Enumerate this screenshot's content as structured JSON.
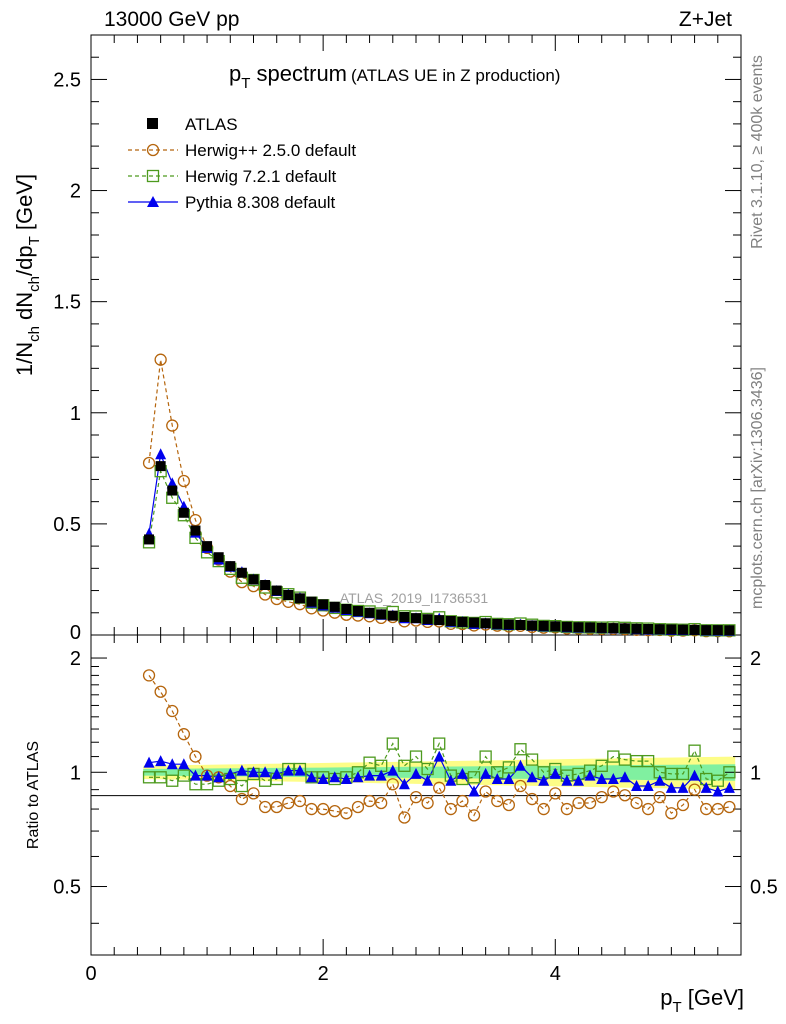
{
  "header": {
    "energy": "13000 GeV pp",
    "process": "Z+Jet"
  },
  "side_labels": {
    "rivet": "Rivet 3.1.10, ≥ 400k events",
    "mcplots": "mcplots.cern.ch [arXiv:1306.3436]"
  },
  "chart_data": {
    "type": "line",
    "title_main": "p",
    "title_sub": "T",
    "title_word": " spectrum",
    "title_extra": "(ATLAS UE in Z production)",
    "analysis_id": "ATLAS_2019_I1736531",
    "xlabel": "p",
    "xlabel_sub": "T",
    "xlabel_unit": " [GeV]",
    "ylabel_main": "1/N",
    "ylabel_ch1": "ch",
    "ylabel_mid": " dN",
    "ylabel_ch2": "ch",
    "ylabel_end": "/dp",
    "ylabel_T": "T",
    "ylabel_unit": " [GeV]",
    "ratio_ylabel": "Ratio to ATLAS",
    "xlim": [
      0,
      5.6
    ],
    "ylim": [
      0,
      2.7
    ],
    "ratio_ylim": [
      0.33,
      2.3
    ],
    "x_ticks": [
      "0",
      "2",
      "4"
    ],
    "y_ticks": [
      "0",
      "0.5",
      "1",
      "1.5",
      "2",
      "2.5"
    ],
    "ratio_ticks": [
      "0.5",
      "1",
      "2"
    ],
    "x": [
      0.5,
      0.6,
      0.7,
      0.8,
      0.9,
      1.0,
      1.1,
      1.2,
      1.3,
      1.4,
      1.5,
      1.6,
      1.7,
      1.8,
      1.9,
      2.0,
      2.1,
      2.2,
      2.3,
      2.4,
      2.5,
      2.6,
      2.7,
      2.8,
      2.9,
      3.0,
      3.1,
      3.2,
      3.3,
      3.4,
      3.5,
      3.6,
      3.7,
      3.8,
      3.9,
      4.0,
      4.1,
      4.2,
      4.3,
      4.4,
      4.5,
      4.6,
      4.7,
      4.8,
      4.9,
      5.0,
      5.1,
      5.2,
      5.3,
      5.4,
      5.5
    ],
    "legend": [
      "ATLAS",
      "Herwig++ 2.5.0 default",
      "Herwig 7.2.1 default",
      "Pythia 8.308 default"
    ],
    "series": [
      {
        "name": "ATLAS",
        "color": "#000000",
        "values": [
          0.43,
          0.76,
          0.65,
          0.55,
          0.47,
          0.4,
          0.35,
          0.31,
          0.28,
          0.25,
          0.225,
          0.2,
          0.18,
          0.165,
          0.15,
          0.138,
          0.127,
          0.117,
          0.108,
          0.1,
          0.093,
          0.087,
          0.081,
          0.076,
          0.071,
          0.067,
          0.063,
          0.059,
          0.056,
          0.053,
          0.05,
          0.047,
          0.045,
          0.043,
          0.041,
          0.039,
          0.037,
          0.035,
          0.034,
          0.032,
          0.031,
          0.03,
          0.028,
          0.027,
          0.026,
          0.025,
          0.024,
          0.023,
          0.022,
          0.022,
          0.021
        ]
      },
      {
        "name": "Herwig++ 2.5.0 default",
        "color": "#b5650d",
        "ratio": [
          1.8,
          1.63,
          1.45,
          1.26,
          1.1,
          0.98,
          0.97,
          0.92,
          0.85,
          0.88,
          0.81,
          0.81,
          0.83,
          0.84,
          0.8,
          0.8,
          0.79,
          0.78,
          0.81,
          0.84,
          0.83,
          0.93,
          0.76,
          0.86,
          0.83,
          0.91,
          0.8,
          0.84,
          0.77,
          0.89,
          0.84,
          0.82,
          0.92,
          0.85,
          0.8,
          0.88,
          0.8,
          0.83,
          0.83,
          0.86,
          0.89,
          0.87,
          0.83,
          0.8,
          0.86,
          0.78,
          0.82,
          0.9,
          0.8,
          0.8,
          0.81
        ]
      },
      {
        "name": "Herwig 7.2.1 default",
        "color": "#4d9a1e",
        "ratio": [
          0.97,
          0.97,
          0.95,
          0.98,
          0.93,
          0.93,
          0.95,
          0.96,
          0.92,
          0.99,
          0.95,
          0.96,
          1.02,
          1.02,
          0.97,
          0.97,
          0.96,
          0.97,
          1.0,
          1.06,
          1.04,
          1.19,
          1.04,
          1.1,
          1.02,
          1.19,
          0.98,
          0.96,
          0.97,
          1.1,
          1.0,
          1.03,
          1.15,
          1.08,
          1.0,
          1.02,
          0.98,
          0.99,
          1.01,
          1.04,
          1.1,
          1.08,
          1.07,
          1.07,
          1.0,
          0.99,
          0.99,
          1.14,
          0.96,
          0.95,
          1.0
        ]
      },
      {
        "name": "Pythia 8.308 default",
        "color": "#0000ee",
        "ratio": [
          1.06,
          1.07,
          1.05,
          1.05,
          0.98,
          0.98,
          0.97,
          0.99,
          1.01,
          1.0,
          1.0,
          0.99,
          1.01,
          1.01,
          0.97,
          0.96,
          0.97,
          0.96,
          0.97,
          0.98,
          0.98,
          1.01,
          0.93,
          0.99,
          0.95,
          1.1,
          0.95,
          0.99,
          0.89,
          0.99,
          0.96,
          0.96,
          1.04,
          0.97,
          0.95,
          0.99,
          0.95,
          0.95,
          0.98,
          0.96,
          0.96,
          0.97,
          0.92,
          0.92,
          0.95,
          0.91,
          0.91,
          0.98,
          0.91,
          0.89,
          0.91
        ]
      }
    ],
    "band": {
      "inner_color": "#80f0a0",
      "outer_color": "#fdfd87",
      "inner_start": 0.02,
      "inner_end": 0.05,
      "outer_start": 0.04,
      "outer_end": 0.1
    }
  }
}
